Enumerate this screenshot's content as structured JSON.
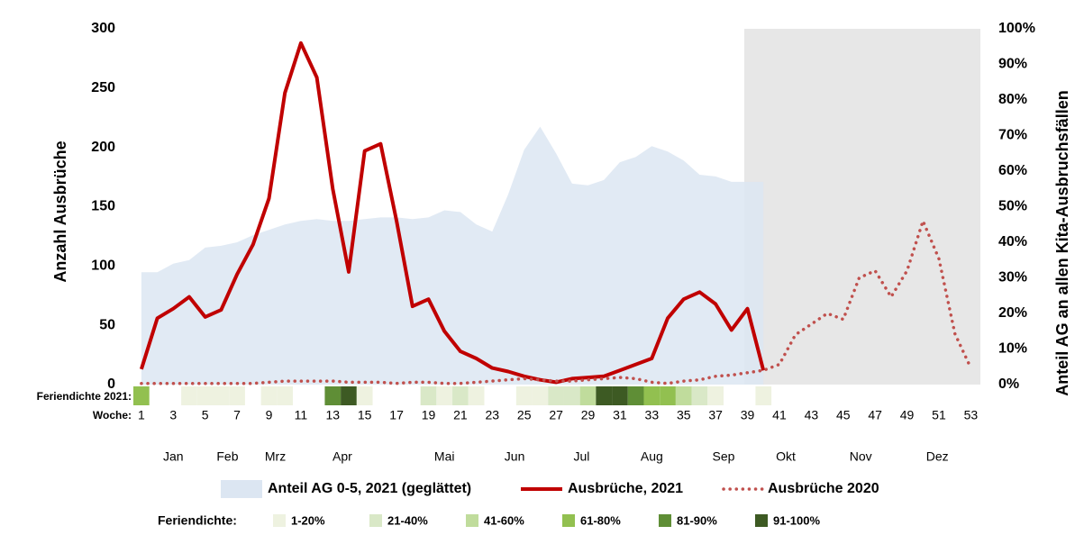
{
  "chart_data": {
    "type": "line",
    "ylabel": "Anzahl Ausbrüche",
    "y2label": "Anteil AG an allen Kita-Ausbruchsfällen",
    "x_label": "Woche:",
    "x": [
      1,
      2,
      3,
      4,
      5,
      6,
      7,
      8,
      9,
      10,
      11,
      12,
      13,
      14,
      15,
      16,
      17,
      18,
      19,
      20,
      21,
      22,
      23,
      24,
      25,
      26,
      27,
      28,
      29,
      30,
      31,
      32,
      33,
      34,
      35,
      36,
      37,
      38,
      39,
      40,
      41,
      42,
      43,
      44,
      45,
      46,
      47,
      48,
      49,
      50,
      51,
      52,
      53
    ],
    "xlim": [
      0.5,
      53.6
    ],
    "xticks": [
      1,
      3,
      5,
      7,
      9,
      11,
      13,
      15,
      17,
      19,
      21,
      23,
      25,
      27,
      29,
      31,
      33,
      35,
      37,
      39,
      41,
      43,
      45,
      47,
      49,
      51,
      53
    ],
    "month_ticks": [
      {
        "value": 3.0,
        "label": "Jan"
      },
      {
        "value": 6.4,
        "label": "Feb"
      },
      {
        "value": 9.4,
        "label": "Mrz"
      },
      {
        "value": 13.6,
        "label": "Apr"
      },
      {
        "value": 20.0,
        "label": "Mai"
      },
      {
        "value": 24.4,
        "label": "Jun"
      },
      {
        "value": 28.6,
        "label": "Jul"
      },
      {
        "value": 33.0,
        "label": "Aug"
      },
      {
        "value": 37.5,
        "label": "Sep"
      },
      {
        "value": 41.4,
        "label": "Okt"
      },
      {
        "value": 46.1,
        "label": "Nov"
      },
      {
        "value": 50.9,
        "label": "Dez"
      }
    ],
    "ylim": [
      0,
      300
    ],
    "yticks": [
      0,
      50,
      100,
      150,
      200,
      250,
      300
    ],
    "y2lim": [
      0,
      100
    ],
    "y2ticks": [
      {
        "value": 0,
        "label": "0%"
      },
      {
        "value": 10,
        "label": "10%"
      },
      {
        "value": 20,
        "label": "20%"
      },
      {
        "value": 30,
        "label": "30%"
      },
      {
        "value": 40,
        "label": "40%"
      },
      {
        "value": 50,
        "label": "50%"
      },
      {
        "value": 60,
        "label": "60%"
      },
      {
        "value": 70,
        "label": "70%"
      },
      {
        "value": 80,
        "label": "80%"
      },
      {
        "value": 90,
        "label": "90%"
      },
      {
        "value": 100,
        "label": "100%"
      }
    ],
    "shaded_xlim": [
      38.8,
      53.6
    ],
    "shade_color": "#e7e7e7",
    "series": [
      {
        "name": "Anteil AG 0-5, 2021 (geglättet)",
        "style": "area",
        "axis": "y2",
        "color": "#dce6f2",
        "values": [
          31.6,
          31.6,
          34,
          35,
          38.5,
          39,
          40,
          42,
          43.5,
          45,
          46,
          46.5,
          46,
          46,
          46.5,
          47,
          47,
          46.5,
          47,
          49,
          48.5,
          45,
          43,
          53.5,
          66,
          72.5,
          65,
          56.5,
          56,
          57.5,
          62.5,
          64,
          67,
          65.5,
          63,
          59,
          58.5,
          57,
          57,
          57,
          null,
          null,
          null,
          null,
          null,
          null,
          null,
          null,
          null,
          null,
          null,
          null,
          null
        ]
      },
      {
        "name": "Ausbrüche, 2021",
        "style": "solid",
        "color": "#c00000",
        "values": [
          13,
          56,
          64,
          74,
          57,
          63,
          93,
          118,
          157,
          246,
          288,
          259,
          165,
          95,
          197,
          203,
          138,
          66,
          72,
          45,
          28,
          22,
          14,
          11,
          7,
          4,
          2,
          5,
          6,
          7,
          12,
          17,
          22,
          56,
          72,
          78,
          68,
          46,
          64,
          12,
          null,
          null,
          null,
          null,
          null,
          null,
          null,
          null,
          null,
          null,
          null,
          null,
          null
        ]
      },
      {
        "name": "Ausbrüche 2020",
        "style": "dotted",
        "color": "#c0504d",
        "values": [
          1,
          1,
          1,
          1,
          1,
          1,
          1,
          1,
          2,
          3,
          3,
          3,
          3,
          2,
          2,
          2,
          1,
          2,
          2,
          1,
          1,
          2,
          3,
          4,
          5,
          4,
          3,
          3,
          4,
          5,
          6,
          5,
          2,
          1,
          3,
          4,
          7,
          8,
          10,
          12,
          17,
          42,
          51,
          60,
          55,
          90,
          96,
          74,
          96,
          138,
          106,
          43,
          14
        ]
      }
    ],
    "holiday_density": {
      "label": "Feriendichte 2021:",
      "values": [
        70,
        null,
        null,
        10,
        10,
        10,
        10,
        null,
        10,
        10,
        null,
        null,
        85,
        95,
        10,
        null,
        null,
        null,
        30,
        10,
        30,
        10,
        null,
        null,
        10,
        10,
        30,
        30,
        50,
        95,
        95,
        85,
        70,
        70,
        50,
        30,
        10,
        null,
        null,
        10,
        null,
        null,
        null,
        null,
        null,
        null,
        null,
        null,
        null,
        null,
        null,
        null,
        null
      ]
    },
    "density_legend": {
      "title": "Feriendichte:",
      "bins": [
        0,
        20,
        40,
        60,
        80,
        90,
        100
      ],
      "classes": [
        {
          "label": "1-20%",
          "color": "#eef2e0"
        },
        {
          "label": "21-40%",
          "color": "#d9e8c7"
        },
        {
          "label": "41-60%",
          "color": "#c0dc9c"
        },
        {
          "label": "61-80%",
          "color": "#92c050"
        },
        {
          "label": "81-90%",
          "color": "#5f8e36"
        },
        {
          "label": "91-100%",
          "color": "#3d5a23"
        }
      ]
    }
  }
}
